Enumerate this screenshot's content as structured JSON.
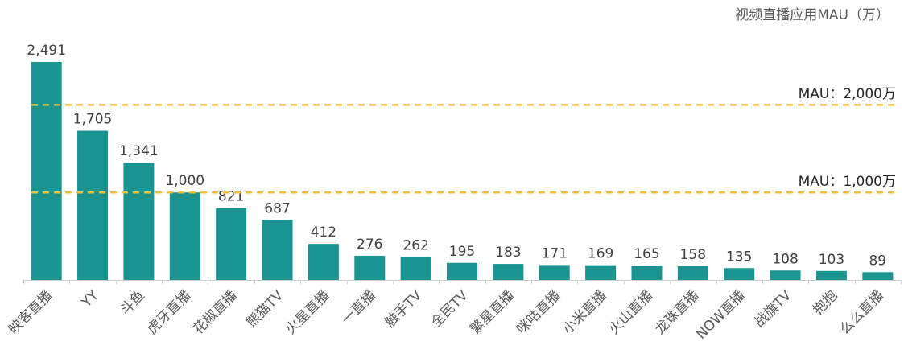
{
  "chart_data": {
    "type": "bar",
    "title": "视频直播应用MAU（万）",
    "xlabel": "",
    "ylabel": "",
    "ylim": [
      0,
      2500
    ],
    "grid": false,
    "legend": null,
    "categories": [
      "映客直播",
      "YY",
      "斗鱼",
      "虎牙直播",
      "花椒直播",
      "熊猫TV",
      "火星直播",
      "一直播",
      "触手TV",
      "全民TV",
      "繁星直播",
      "咪咕直播",
      "小米直播",
      "火山直播",
      "龙珠直播",
      "NOW直播",
      "战旗TV",
      "抱抱",
      "么么直播"
    ],
    "values": [
      2491,
      1705,
      1341,
      1000,
      821,
      687,
      412,
      276,
      262,
      195,
      183,
      171,
      169,
      165,
      158,
      135,
      108,
      103,
      89
    ],
    "value_labels": [
      "2,491",
      "1,705",
      "1,341",
      "1,000",
      "821",
      "687",
      "412",
      "276",
      "262",
      "195",
      "183",
      "171",
      "169",
      "165",
      "158",
      "135",
      "108",
      "103",
      "89"
    ],
    "reference_lines": [
      {
        "value": 2000,
        "label": "MAU：2,000万",
        "style": "dashed",
        "color": "#F2C037"
      },
      {
        "value": 1000,
        "label": "MAU：1,000万",
        "style": "dashed",
        "color": "#F2C037"
      }
    ],
    "bar_color": "#1A9490"
  }
}
